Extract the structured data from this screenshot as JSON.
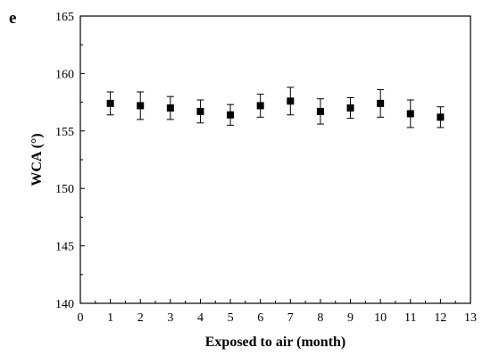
{
  "panel_label": "e",
  "chart_data": {
    "type": "scatter",
    "title": "",
    "xlabel": "Exposed to air (month)",
    "ylabel": "WCA (°)",
    "xlim": [
      0,
      13
    ],
    "ylim": [
      140,
      165
    ],
    "xticks": [
      0,
      1,
      2,
      3,
      4,
      5,
      6,
      7,
      8,
      9,
      10,
      11,
      12,
      13
    ],
    "yticks": [
      140,
      145,
      150,
      155,
      160,
      165
    ],
    "grid": false,
    "legend": "none",
    "marker": "square",
    "color": "#000000",
    "series": [
      {
        "x": [
          1,
          2,
          3,
          4,
          5,
          6,
          7,
          8,
          9,
          10,
          11,
          12
        ],
        "y": [
          157.4,
          157.2,
          157.0,
          156.7,
          156.4,
          157.2,
          157.6,
          156.7,
          157.0,
          157.4,
          156.5,
          156.2
        ],
        "error": [
          1.0,
          1.2,
          1.0,
          1.0,
          0.9,
          1.0,
          1.2,
          1.1,
          0.9,
          1.2,
          1.2,
          0.9
        ]
      }
    ]
  }
}
